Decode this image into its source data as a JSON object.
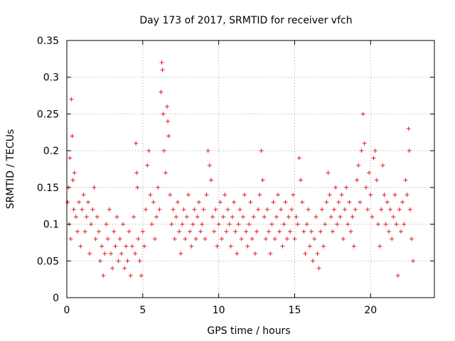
{
  "chart_data": {
    "type": "scatter",
    "title": "Day 173 of 2017, SRMTID for receiver vfch",
    "xlabel": "GPS time / hours",
    "ylabel": "SRMTID / TECUs",
    "xlim": [
      0,
      24.2
    ],
    "ylim": [
      0,
      0.35
    ],
    "x_ticks": [
      0,
      5,
      10,
      15,
      20
    ],
    "x_tick_labels": [
      "0",
      "5",
      "10",
      "15",
      "20"
    ],
    "y_ticks": [
      0,
      0.05,
      0.1,
      0.15,
      0.2,
      0.25,
      0.3,
      0.35
    ],
    "y_tick_labels": [
      "0",
      "0.05",
      "0.1",
      "0.15",
      "0.2",
      "0.25",
      "0.3",
      "0.35"
    ],
    "grid": true,
    "marker": "+",
    "color": "#e41a1c",
    "series": [
      {
        "name": "SRMTID",
        "points": [
          [
            0.05,
            0.13
          ],
          [
            0.1,
            0.15
          ],
          [
            0.15,
            0.1
          ],
          [
            0.2,
            0.19
          ],
          [
            0.25,
            0.08
          ],
          [
            0.3,
            0.27
          ],
          [
            0.35,
            0.22
          ],
          [
            0.4,
            0.16
          ],
          [
            0.45,
            0.12
          ],
          [
            0.5,
            0.17
          ],
          [
            0.6,
            0.11
          ],
          [
            0.7,
            0.09
          ],
          [
            0.8,
            0.13
          ],
          [
            0.9,
            0.07
          ],
          [
            1.0,
            0.12
          ],
          [
            1.1,
            0.14
          ],
          [
            1.2,
            0.09
          ],
          [
            1.3,
            0.11
          ],
          [
            1.4,
            0.13
          ],
          [
            1.5,
            0.06
          ],
          [
            1.6,
            0.1
          ],
          [
            1.7,
            0.12
          ],
          [
            1.8,
            0.15
          ],
          [
            1.9,
            0.08
          ],
          [
            2.0,
            0.11
          ],
          [
            2.1,
            0.09
          ],
          [
            2.2,
            0.05
          ],
          [
            2.3,
            0.07
          ],
          [
            2.4,
            0.03
          ],
          [
            2.5,
            0.06
          ],
          [
            2.6,
            0.1
          ],
          [
            2.7,
            0.08
          ],
          [
            2.8,
            0.12
          ],
          [
            2.9,
            0.06
          ],
          [
            3.0,
            0.04
          ],
          [
            3.1,
            0.09
          ],
          [
            3.2,
            0.07
          ],
          [
            3.3,
            0.11
          ],
          [
            3.4,
            0.05
          ],
          [
            3.5,
            0.08
          ],
          [
            3.6,
            0.06
          ],
          [
            3.7,
            0.1
          ],
          [
            3.8,
            0.04
          ],
          [
            3.9,
            0.07
          ],
          [
            4.0,
            0.05
          ],
          [
            4.1,
            0.09
          ],
          [
            4.2,
            0.03
          ],
          [
            4.3,
            0.07
          ],
          [
            4.4,
            0.11
          ],
          [
            4.5,
            0.06
          ],
          [
            4.55,
            0.21
          ],
          [
            4.6,
            0.17
          ],
          [
            4.65,
            0.15
          ],
          [
            4.7,
            0.08
          ],
          [
            4.8,
            0.05
          ],
          [
            4.9,
            0.03
          ],
          [
            5.0,
            0.09
          ],
          [
            5.1,
            0.07
          ],
          [
            5.2,
            0.12
          ],
          [
            5.3,
            0.18
          ],
          [
            5.4,
            0.2
          ],
          [
            5.5,
            0.14
          ],
          [
            5.6,
            0.1
          ],
          [
            5.7,
            0.13
          ],
          [
            5.8,
            0.08
          ],
          [
            5.9,
            0.11
          ],
          [
            6.0,
            0.15
          ],
          [
            6.1,
            0.12
          ],
          [
            6.2,
            0.28
          ],
          [
            6.25,
            0.32
          ],
          [
            6.3,
            0.31
          ],
          [
            6.35,
            0.25
          ],
          [
            6.4,
            0.2
          ],
          [
            6.5,
            0.17
          ],
          [
            6.6,
            0.26
          ],
          [
            6.65,
            0.24
          ],
          [
            6.7,
            0.22
          ],
          [
            6.8,
            0.14
          ],
          [
            6.9,
            0.1
          ],
          [
            7.0,
            0.12
          ],
          [
            7.1,
            0.08
          ],
          [
            7.2,
            0.11
          ],
          [
            7.3,
            0.13
          ],
          [
            7.4,
            0.09
          ],
          [
            7.5,
            0.06
          ],
          [
            7.6,
            0.1
          ],
          [
            7.7,
            0.12
          ],
          [
            7.8,
            0.08
          ],
          [
            7.9,
            0.11
          ],
          [
            8.0,
            0.14
          ],
          [
            8.1,
            0.09
          ],
          [
            8.2,
            0.07
          ],
          [
            8.3,
            0.1
          ],
          [
            8.4,
            0.12
          ],
          [
            8.5,
            0.08
          ],
          [
            8.6,
            0.11
          ],
          [
            8.7,
            0.13
          ],
          [
            8.8,
            0.09
          ],
          [
            8.9,
            0.1
          ],
          [
            9.0,
            0.12
          ],
          [
            9.1,
            0.08
          ],
          [
            9.2,
            0.14
          ],
          [
            9.3,
            0.2
          ],
          [
            9.4,
            0.18
          ],
          [
            9.5,
            0.16
          ],
          [
            9.6,
            0.11
          ],
          [
            9.7,
            0.09
          ],
          [
            9.8,
            0.12
          ],
          [
            9.9,
            0.07
          ],
          [
            10.0,
            0.1
          ],
          [
            10.1,
            0.13
          ],
          [
            10.2,
            0.08
          ],
          [
            10.3,
            0.11
          ],
          [
            10.4,
            0.14
          ],
          [
            10.5,
            0.09
          ],
          [
            10.6,
            0.12
          ],
          [
            10.7,
            0.1
          ],
          [
            10.8,
            0.07
          ],
          [
            10.9,
            0.11
          ],
          [
            11.0,
            0.13
          ],
          [
            11.1,
            0.09
          ],
          [
            11.2,
            0.06
          ],
          [
            11.3,
            0.1
          ],
          [
            11.4,
            0.12
          ],
          [
            11.5,
            0.08
          ],
          [
            11.6,
            0.11
          ],
          [
            11.7,
            0.14
          ],
          [
            11.8,
            0.09
          ],
          [
            11.9,
            0.07
          ],
          [
            12.0,
            0.1
          ],
          [
            12.1,
            0.13
          ],
          [
            12.2,
            0.08
          ],
          [
            12.3,
            0.11
          ],
          [
            12.4,
            0.06
          ],
          [
            12.5,
            0.09
          ],
          [
            12.6,
            0.12
          ],
          [
            12.7,
            0.14
          ],
          [
            12.8,
            0.2
          ],
          [
            12.9,
            0.16
          ],
          [
            13.0,
            0.11
          ],
          [
            13.1,
            0.08
          ],
          [
            13.2,
            0.12
          ],
          [
            13.3,
            0.09
          ],
          [
            13.4,
            0.06
          ],
          [
            13.5,
            0.1
          ],
          [
            13.6,
            0.13
          ],
          [
            13.7,
            0.08
          ],
          [
            13.8,
            0.11
          ],
          [
            13.9,
            0.14
          ],
          [
            14.0,
            0.09
          ],
          [
            14.1,
            0.12
          ],
          [
            14.2,
            0.07
          ],
          [
            14.3,
            0.1
          ],
          [
            14.4,
            0.13
          ],
          [
            14.5,
            0.08
          ],
          [
            14.6,
            0.11
          ],
          [
            14.7,
            0.09
          ],
          [
            14.8,
            0.12
          ],
          [
            14.9,
            0.14
          ],
          [
            15.0,
            0.08
          ],
          [
            15.1,
            0.11
          ],
          [
            15.2,
            0.1
          ],
          [
            15.3,
            0.19
          ],
          [
            15.4,
            0.16
          ],
          [
            15.5,
            0.13
          ],
          [
            15.6,
            0.09
          ],
          [
            15.7,
            0.06
          ],
          [
            15.8,
            0.1
          ],
          [
            15.9,
            0.12
          ],
          [
            16.0,
            0.07
          ],
          [
            16.1,
            0.09
          ],
          [
            16.2,
            0.05
          ],
          [
            16.3,
            0.08
          ],
          [
            16.4,
            0.11
          ],
          [
            16.5,
            0.06
          ],
          [
            16.6,
            0.04
          ],
          [
            16.7,
            0.09
          ],
          [
            16.8,
            0.12
          ],
          [
            16.9,
            0.07
          ],
          [
            17.0,
            0.1
          ],
          [
            17.1,
            0.13
          ],
          [
            17.2,
            0.17
          ],
          [
            17.3,
            0.14
          ],
          [
            17.4,
            0.11
          ],
          [
            17.5,
            0.09
          ],
          [
            17.6,
            0.12
          ],
          [
            17.7,
            0.15
          ],
          [
            17.8,
            0.1
          ],
          [
            17.9,
            0.13
          ],
          [
            18.0,
            0.11
          ],
          [
            18.1,
            0.14
          ],
          [
            18.2,
            0.08
          ],
          [
            18.3,
            0.12
          ],
          [
            18.4,
            0.15
          ],
          [
            18.5,
            0.1
          ],
          [
            18.6,
            0.13
          ],
          [
            18.7,
            0.09
          ],
          [
            18.8,
            0.11
          ],
          [
            18.9,
            0.07
          ],
          [
            19.0,
            0.12
          ],
          [
            19.1,
            0.16
          ],
          [
            19.2,
            0.18
          ],
          [
            19.3,
            0.13
          ],
          [
            19.4,
            0.2
          ],
          [
            19.5,
            0.25
          ],
          [
            19.6,
            0.21
          ],
          [
            19.7,
            0.15
          ],
          [
            19.8,
            0.12
          ],
          [
            19.9,
            0.17
          ],
          [
            20.0,
            0.14
          ],
          [
            20.1,
            0.11
          ],
          [
            20.2,
            0.19
          ],
          [
            20.3,
            0.2
          ],
          [
            20.4,
            0.16
          ],
          [
            20.5,
            0.1
          ],
          [
            20.6,
            0.07
          ],
          [
            20.7,
            0.12
          ],
          [
            20.8,
            0.18
          ],
          [
            20.9,
            0.14
          ],
          [
            21.0,
            0.1
          ],
          [
            21.1,
            0.13
          ],
          [
            21.2,
            0.09
          ],
          [
            21.3,
            0.12
          ],
          [
            21.4,
            0.08
          ],
          [
            21.5,
            0.11
          ],
          [
            21.6,
            0.14
          ],
          [
            21.7,
            0.1
          ],
          [
            21.8,
            0.03
          ],
          [
            21.9,
            0.12
          ],
          [
            22.0,
            0.09
          ],
          [
            22.1,
            0.13
          ],
          [
            22.2,
            0.1
          ],
          [
            22.3,
            0.16
          ],
          [
            22.4,
            0.14
          ],
          [
            22.5,
            0.23
          ],
          [
            22.55,
            0.2
          ],
          [
            22.6,
            0.12
          ],
          [
            22.7,
            0.08
          ],
          [
            22.8,
            0.05
          ]
        ]
      }
    ]
  }
}
